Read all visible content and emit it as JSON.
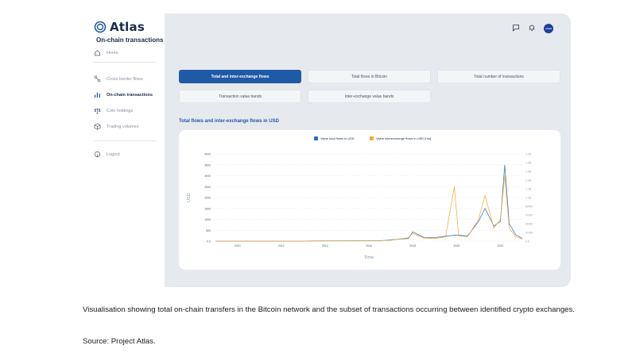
{
  "app": {
    "name": "Atlas"
  },
  "sidebar": {
    "items": [
      {
        "label": "Home",
        "icon": "home-icon"
      },
      {
        "label": "Cross border flows",
        "icon": "flow-icon"
      },
      {
        "label": "On-chain transactions",
        "icon": "bar-chart-icon",
        "active": true
      },
      {
        "label": "Coin holdings",
        "icon": "coins-icon"
      },
      {
        "label": "Trading volumes",
        "icon": "cube-icon"
      },
      {
        "label": "Logout",
        "icon": "logout-icon"
      }
    ]
  },
  "header": {
    "avatar_text": "USER"
  },
  "main": {
    "title": "On-chain transactions",
    "tabs": [
      {
        "label": "Total and inter-exchange flows",
        "active": true
      },
      {
        "label": "Total flows in Bitcoin"
      },
      {
        "label": "Total number of transactions"
      },
      {
        "label": "Transaction value bands"
      },
      {
        "label": "Inter-exchange value bands"
      }
    ],
    "section_title": "Total flows and inter-exchange flows in USD"
  },
  "chart_data": {
    "type": "line",
    "xlabel": "Time",
    "ylabel": "USD",
    "legend": [
      "Value total flows in USD",
      "Value interexchange flows in USD [rhs]"
    ],
    "legend_position": "top-center",
    "colors": {
      "total": "#2e6fb7",
      "interexchange": "#f0a93a"
    },
    "left_ticks": [
      "0.0",
      "500",
      "1000",
      "1500",
      "2000",
      "2500",
      "3000",
      "3500",
      "4000"
    ],
    "right_ticks": [
      "0.0",
      "200M",
      "400M",
      "600M",
      "800M",
      "1.0B",
      "1.2B",
      "1.4B",
      "1.6B",
      "1.8B",
      "2.0B"
    ],
    "x_ticks": [
      "2010",
      "2012",
      "2014",
      "2016",
      "2018",
      "2020",
      "2022"
    ],
    "ylim_left": [
      0,
      4000
    ],
    "ylim_right": [
      0,
      2000000000
    ],
    "xlim": [
      2009,
      2023
    ],
    "grid": true,
    "series": [
      {
        "name": "Value total flows in USD",
        "axis": "left",
        "points": [
          [
            2009,
            0
          ],
          [
            2013,
            2
          ],
          [
            2014,
            10
          ],
          [
            2016.5,
            15
          ],
          [
            2017,
            60
          ],
          [
            2017.8,
            120
          ],
          [
            2018,
            420
          ],
          [
            2018.5,
            180
          ],
          [
            2019,
            160
          ],
          [
            2019.5,
            230
          ],
          [
            2020,
            280
          ],
          [
            2020.5,
            240
          ],
          [
            2021,
            900
          ],
          [
            2021.3,
            1500
          ],
          [
            2021.7,
            700
          ],
          [
            2022,
            900
          ],
          [
            2022.2,
            3500
          ],
          [
            2022.4,
            800
          ],
          [
            2022.7,
            300
          ],
          [
            2023,
            120
          ]
        ]
      },
      {
        "name": "Value interexchange flows in USD [rhs]",
        "axis": "right",
        "points": [
          [
            2009,
            0
          ],
          [
            2013,
            2000000
          ],
          [
            2014,
            8000000
          ],
          [
            2016.5,
            10000000
          ],
          [
            2017,
            20000000
          ],
          [
            2017.8,
            80000000
          ],
          [
            2018,
            180000000
          ],
          [
            2018.5,
            70000000
          ],
          [
            2019,
            60000000
          ],
          [
            2019.5,
            100000000
          ],
          [
            2019.9,
            1250000000
          ],
          [
            2020.1,
            120000000
          ],
          [
            2020.5,
            100000000
          ],
          [
            2021,
            500000000
          ],
          [
            2021.3,
            1050000000
          ],
          [
            2021.7,
            300000000
          ],
          [
            2022,
            500000000
          ],
          [
            2022.2,
            1500000000
          ],
          [
            2022.4,
            300000000
          ],
          [
            2022.7,
            100000000
          ],
          [
            2023,
            50000000
          ]
        ]
      }
    ]
  },
  "caption": "Visualisation showing total on-chain transfers in the Bitcoin network and the subset of transactions occurring between identified crypto exchanges.",
  "source": "Source: Project Atlas."
}
